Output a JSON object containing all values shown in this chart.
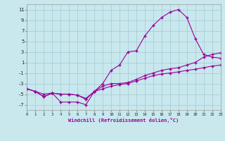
{
  "background_color": "#c8e8ee",
  "grid_color": "#a8c8d0",
  "line_color": "#990099",
  "xlabel": "Windchill (Refroidissement éolien,°C)",
  "x_hours": [
    0,
    1,
    2,
    3,
    4,
    5,
    6,
    7,
    8,
    9,
    10,
    11,
    12,
    13,
    14,
    15,
    16,
    17,
    18,
    19,
    20,
    21,
    22,
    23
  ],
  "line1_y": [
    -4.0,
    -4.5,
    -5.5,
    -4.8,
    -6.5,
    -6.5,
    -6.5,
    -7.0,
    -4.5,
    -3.0,
    -0.5,
    0.5,
    3.0,
    3.2,
    6.0,
    8.0,
    9.5,
    10.5,
    11.0,
    9.5,
    5.5,
    2.5,
    2.0,
    1.8
  ],
  "line2_y": [
    -4.0,
    -4.5,
    -5.5,
    -4.8,
    -5.0,
    -5.0,
    -5.2,
    -6.0,
    -4.5,
    -3.5,
    -3.0,
    -3.0,
    -2.8,
    -2.2,
    -1.5,
    -1.0,
    -0.5,
    -0.2,
    0.0,
    0.5,
    1.0,
    2.0,
    2.5,
    2.8
  ],
  "line3_y": [
    -4.0,
    -4.5,
    -5.0,
    -4.8,
    -5.0,
    -5.0,
    -5.2,
    -5.8,
    -4.5,
    -4.0,
    -3.5,
    -3.2,
    -3.0,
    -2.5,
    -2.0,
    -1.5,
    -1.2,
    -1.0,
    -0.8,
    -0.5,
    -0.3,
    0.0,
    0.3,
    0.5
  ],
  "ylim": [
    -8.0,
    12.0
  ],
  "xlim": [
    0,
    23
  ],
  "yticks": [
    -7,
    -5,
    -3,
    -1,
    1,
    3,
    5,
    7,
    9,
    11
  ],
  "xticks": [
    0,
    1,
    2,
    3,
    4,
    5,
    6,
    7,
    8,
    9,
    10,
    11,
    12,
    13,
    14,
    15,
    16,
    17,
    18,
    19,
    20,
    21,
    22,
    23
  ]
}
